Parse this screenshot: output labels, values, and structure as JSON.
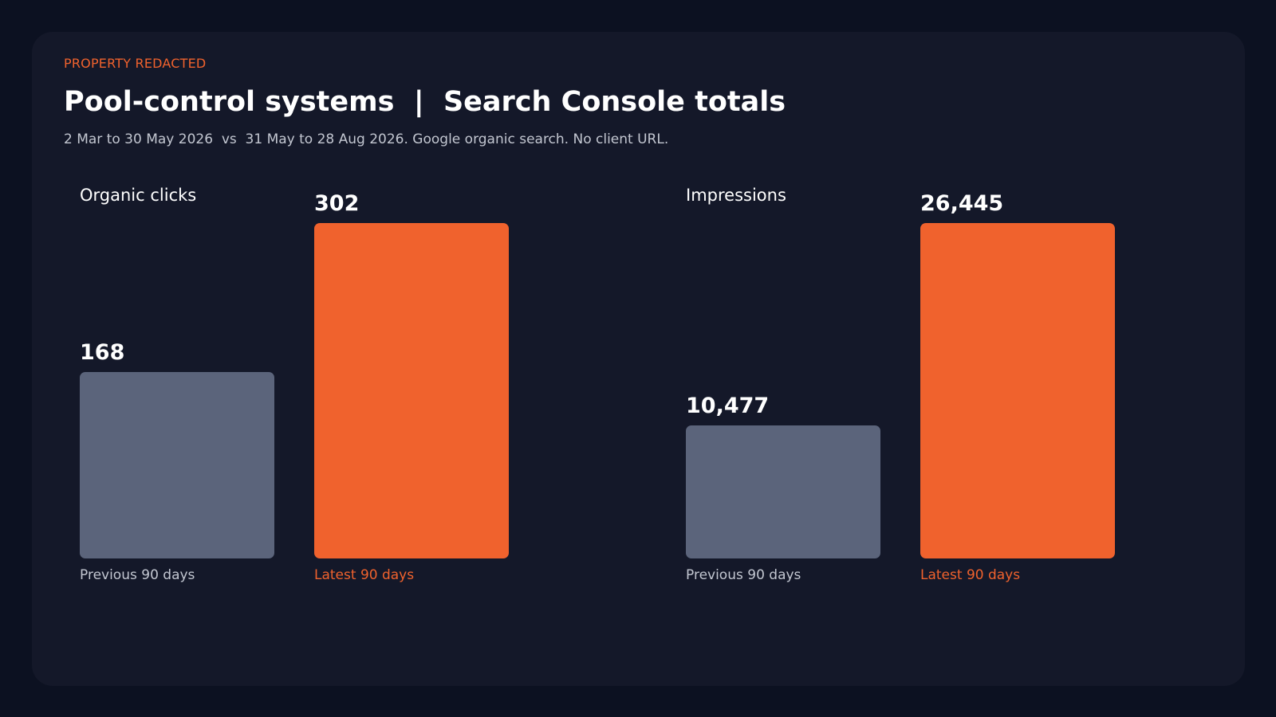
{
  "header": {
    "eyebrow": "PROPERTY REDACTED",
    "title": "Pool-control systems  |  Search Console totals",
    "subtitle": "2 Mar to 30 May 2026  vs  31 May to 28 Aug 2026. Google organic search. No client URL."
  },
  "colors": {
    "background": "#0c1121",
    "card": "#141829",
    "accent": "#f0622d",
    "previous_bar": "#5b647b"
  },
  "chart_data": [
    {
      "type": "bar",
      "title": "Organic clicks",
      "categories": [
        "Previous 90 days",
        "Latest 90 days"
      ],
      "values": [
        168,
        302
      ],
      "labels": [
        "168",
        "302"
      ],
      "ylim": [
        0,
        302
      ]
    },
    {
      "type": "bar",
      "title": "Impressions",
      "categories": [
        "Previous 90 days",
        "Latest 90 days"
      ],
      "values": [
        10477,
        26445
      ],
      "labels": [
        "10,477",
        "26,445"
      ],
      "ylim": [
        0,
        26445
      ]
    }
  ]
}
